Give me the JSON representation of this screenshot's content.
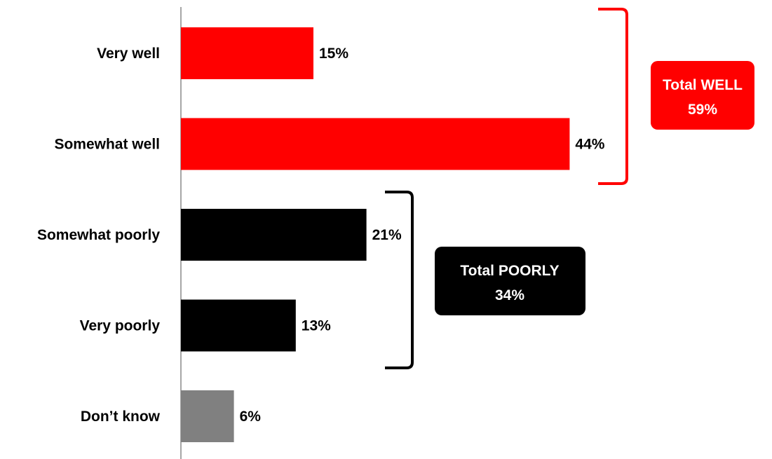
{
  "chart_data": {
    "type": "bar",
    "orientation": "horizontal",
    "categories": [
      "Very well",
      "Somewhat well",
      "Somewhat poorly",
      "Very poorly",
      "Don’t know"
    ],
    "values": [
      15,
      44,
      21,
      13,
      6
    ],
    "value_labels": [
      "15%",
      "44%",
      "21%",
      "13%",
      "6%"
    ],
    "bar_colors": [
      "#ff0000",
      "#ff0000",
      "#000000",
      "#000000",
      "#808080"
    ],
    "xlim": [
      0,
      100
    ],
    "grid": false,
    "title": "",
    "xlabel": "",
    "ylabel": ""
  },
  "totals": {
    "well": {
      "title": "Total WELL",
      "value": "59%",
      "color": "#ff0000"
    },
    "poorly": {
      "title": "Total POORLY",
      "value": "34%",
      "color": "#000000"
    }
  }
}
